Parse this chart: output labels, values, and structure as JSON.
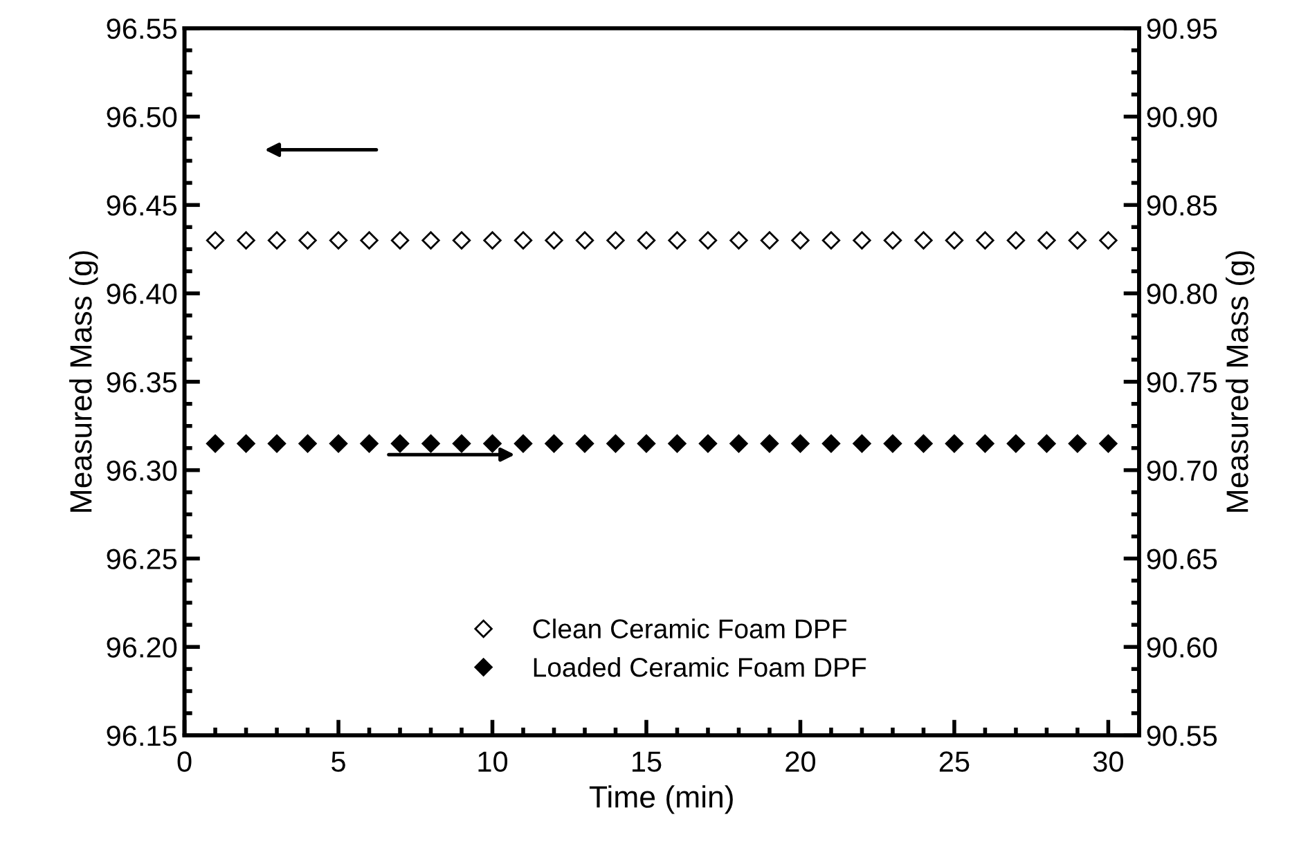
{
  "chart_data": {
    "type": "scatter",
    "xlabel": "Time (min)",
    "ylabel": "Measured Mass (g)",
    "y2label": "Measured Mass (g)",
    "x": [
      1,
      2,
      3,
      4,
      5,
      6,
      7,
      8,
      9,
      10,
      11,
      12,
      13,
      14,
      15,
      16,
      17,
      18,
      19,
      20,
      21,
      22,
      23,
      24,
      25,
      26,
      27,
      28,
      29,
      30
    ],
    "series": [
      {
        "name": "Clean Ceramic Foam DPF",
        "color": "#000000",
        "marker": "diamond",
        "values": [
          96.43,
          96.43,
          96.43,
          96.43,
          96.43,
          96.43,
          96.43,
          96.43,
          96.43,
          96.43,
          96.43,
          96.43,
          96.43,
          96.43,
          96.43,
          96.43,
          96.43,
          96.43,
          96.43,
          96.43,
          96.43,
          96.43,
          96.43,
          96.43,
          96.43,
          96.43,
          96.43,
          96.43,
          96.43,
          96.43
        ]
      },
      {
        "name": "Loaded Ceramic Foam DPF",
        "color": "#000000",
        "marker": "diamond",
        "axis": "y2",
        "values": [
          90.715,
          90.715,
          90.715,
          90.715,
          90.715,
          90.715,
          90.715,
          90.715,
          90.715,
          90.715,
          90.715,
          90.715,
          90.715,
          90.715,
          90.715,
          90.715,
          90.715,
          90.715,
          90.715,
          90.715,
          90.715,
          90.715,
          90.715,
          90.715,
          90.715,
          90.715,
          90.715,
          90.715,
          90.715,
          90.715
        ]
      }
    ],
    "xlim": [
      0,
      31
    ],
    "xticks": [
      0,
      5,
      10,
      15,
      20,
      25,
      30
    ],
    "ylim": [
      96.15,
      96.55
    ],
    "yticks": [
      96.15,
      {
        "value": 96.2,
        "label": "96.20"
      },
      96.25,
      {
        "value": 96.3,
        "label": "96.30"
      },
      96.35,
      {
        "value": 96.4,
        "label": "96.40"
      },
      96.45,
      {
        "value": 96.5,
        "label": "96.50"
      },
      96.55
    ],
    "y2lim": [
      90.55,
      90.95
    ],
    "y2ticks": [
      90.55,
      {
        "value": 90.6,
        "label": "90.60"
      },
      90.65,
      {
        "value": 90.7,
        "label": "90.70"
      },
      90.75,
      {
        "value": 90.8,
        "label": "90.80"
      },
      90.85,
      {
        "value": 90.9,
        "label": "90.90"
      },
      90.95
    ],
    "grid": false,
    "legend": "bottom"
  }
}
